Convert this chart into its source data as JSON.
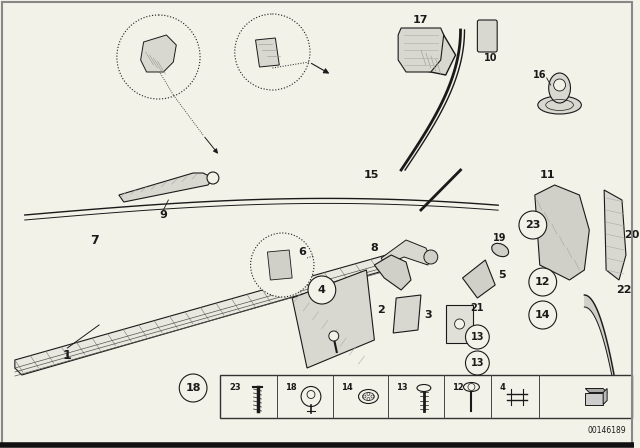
{
  "bg_color": "#f2f2e8",
  "line_color": "#1a1a1a",
  "diagram_id": "00146189",
  "border_color": "#555555",
  "white": "#ffffff",
  "gray_fill": "#d0d0c8",
  "dark_gray": "#888888"
}
